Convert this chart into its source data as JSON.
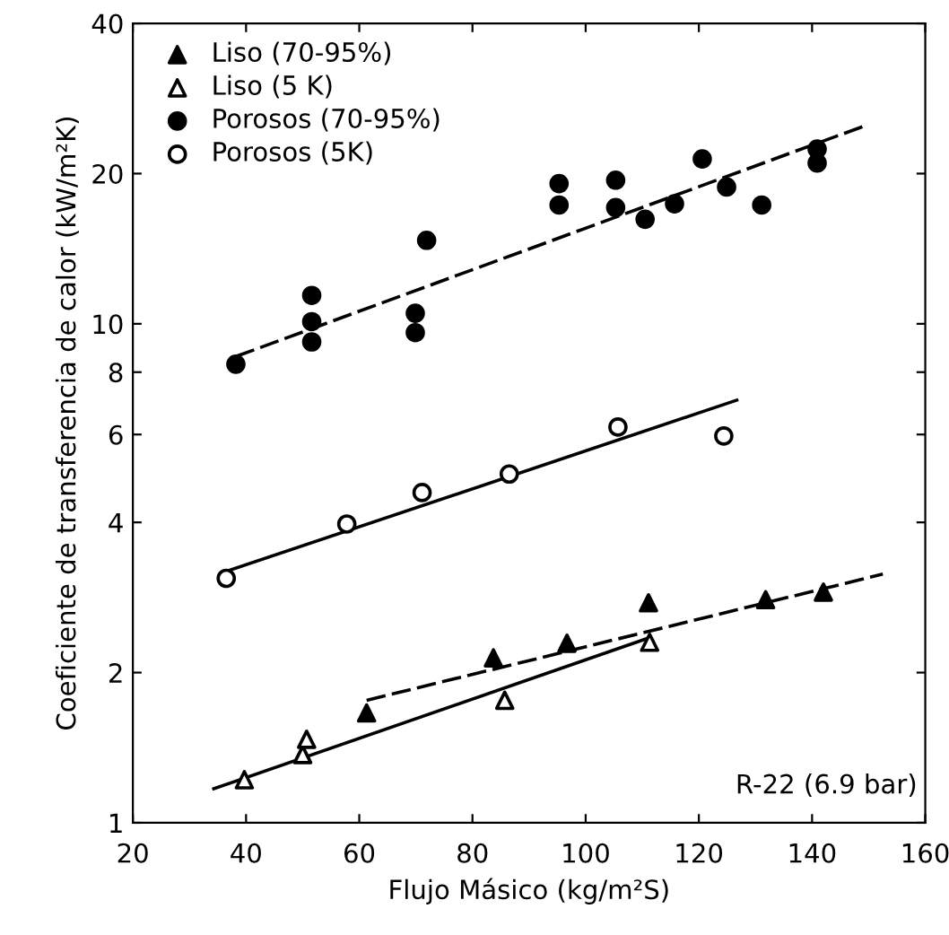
{
  "chart_data": {
    "type": "scatter",
    "xlabel": "Flujo Másico (kg/m²S)",
    "ylabel": "Coeficiente de transferencia de calor (kW/m²K)",
    "log": "y",
    "xlim": [
      20,
      160
    ],
    "xticks": [
      20,
      40,
      60,
      80,
      100,
      120,
      140,
      160
    ],
    "ylim": [
      1,
      40
    ],
    "yticks": [
      1,
      2,
      4,
      6,
      8,
      10,
      20,
      40
    ],
    "legend": "top left",
    "grid": false,
    "annotations": [
      "R-22 (6.9 bar)"
    ],
    "series": [
      {
        "name": "Liso (70-95%)",
        "color": "#000000",
        "marker": "triangle",
        "x": [
          61.3,
          83.7,
          96.7,
          111.1,
          131.8,
          142.0
        ],
        "values": [
          1.66,
          2.14,
          2.29,
          2.76,
          2.8,
          2.9
        ]
      },
      {
        "name": "Liso (5 K)",
        "color": "#ffffff",
        "marker": "triangle",
        "x": [
          39.7,
          50.0,
          50.7,
          85.7,
          111.3
        ],
        "values": [
          1.22,
          1.37,
          1.47,
          1.76,
          2.3
        ]
      },
      {
        "name": "Porosos (70-95%)",
        "color": "#000000",
        "marker": "circle",
        "x": [
          38.2,
          51.6,
          51.6,
          51.6,
          69.9,
          69.9,
          71.9,
          95.3,
          95.3,
          105.3,
          105.3,
          110.5,
          115.7,
          120.6,
          124.9,
          131.1,
          140.9,
          140.9
        ],
        "values": [
          8.3,
          11.4,
          10.1,
          9.2,
          10.5,
          9.6,
          14.7,
          19.1,
          17.3,
          19.4,
          17.1,
          16.2,
          17.4,
          21.4,
          18.8,
          17.3,
          22.4,
          21.0
        ]
      },
      {
        "name": "Porosos (5K)",
        "color": "#ffffff",
        "marker": "circle",
        "x": [
          36.5,
          57.8,
          71.1,
          86.5,
          105.7,
          124.4
        ],
        "values": [
          3.09,
          3.97,
          4.59,
          5.0,
          6.21,
          5.96
        ]
      },
      {
        "type": "line",
        "color": "#000000",
        "marker": "none",
        "line_style": "dashed",
        "x": [
          61.3,
          152.5
        ],
        "values": [
          1.76,
          3.15
        ]
      },
      {
        "type": "line",
        "color": "#000000",
        "marker": "none",
        "line_style": "solid",
        "x": [
          34.3,
          111.3
        ],
        "values": [
          1.17,
          2.35
        ]
      },
      {
        "type": "line",
        "color": "#000000",
        "marker": "none",
        "line_style": "dashed",
        "x": [
          38.2,
          149.6
        ],
        "values": [
          8.6,
          25.0
        ]
      },
      {
        "type": "line",
        "color": "#000000",
        "marker": "none",
        "line_style": "solid",
        "x": [
          36.5,
          126.7
        ],
        "values": [
          3.19,
          7.03
        ]
      }
    ]
  }
}
